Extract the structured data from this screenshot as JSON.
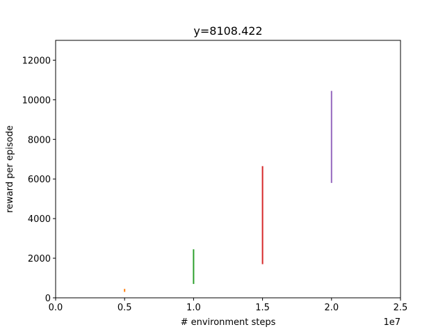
{
  "chart_data": {
    "type": "scatter",
    "title": "y=8108.422",
    "xlabel": "# environment steps",
    "ylabel": "reward per episode",
    "x_offset_label": "1e7",
    "xlim": [
      0,
      25000000
    ],
    "ylim": [
      0,
      13000
    ],
    "x_ticks": [
      0,
      5000000,
      10000000,
      15000000,
      20000000,
      25000000
    ],
    "x_tick_labels": [
      "0.0",
      "0.5",
      "1.0",
      "1.5",
      "2.0",
      "2.5"
    ],
    "y_ticks": [
      0,
      2000,
      4000,
      6000,
      8000,
      10000,
      12000
    ],
    "y_tick_labels": [
      "0",
      "2000",
      "4000",
      "6000",
      "8000",
      "10000",
      "12000"
    ],
    "grid": false,
    "series": [
      {
        "x": 5000000,
        "y_low": 300,
        "y_high": 450,
        "color": "#ff7f0e"
      },
      {
        "x": 10000000,
        "y_low": 700,
        "y_high": 2450,
        "color": "#2ca02c"
      },
      {
        "x": 15000000,
        "y_low": 1700,
        "y_high": 6650,
        "color": "#d62728"
      },
      {
        "x": 20000000,
        "y_low": 5800,
        "y_high": 10450,
        "color": "#9467bd"
      }
    ]
  }
}
